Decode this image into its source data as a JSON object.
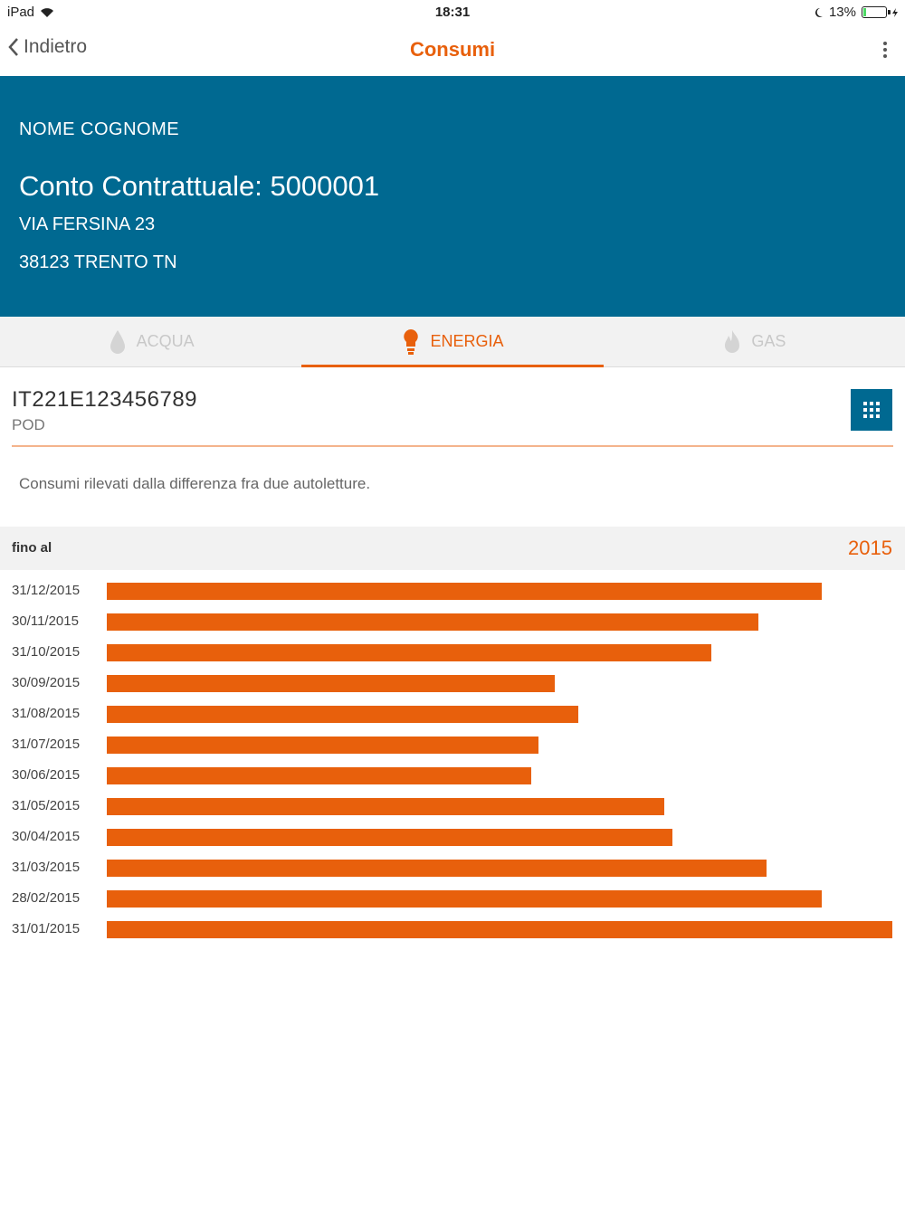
{
  "status_bar": {
    "device": "iPad",
    "time": "18:31",
    "battery": "13%",
    "battery_level": 0.13
  },
  "nav": {
    "back_label": "Indietro",
    "title": "Consumi"
  },
  "banner": {
    "name": "NOME COGNOME",
    "contract": "Conto Contrattuale: 5000001",
    "address_line1": "VIA FERSINA 23",
    "address_line2": "38123 TRENTO TN"
  },
  "tabs": [
    {
      "label": "ACQUA",
      "icon": "water-drop-icon",
      "active": false
    },
    {
      "label": "ENERGIA",
      "icon": "light-bulb-icon",
      "active": true
    },
    {
      "label": "GAS",
      "icon": "flame-icon",
      "active": false
    }
  ],
  "pod": {
    "code": "IT221E123456789",
    "label": "POD"
  },
  "note": "Consumi rilevati dalla differenza fra due autoletture.",
  "section": {
    "label": "fino al",
    "year": "2015"
  },
  "colors": {
    "accent": "#e8600c",
    "banner": "#006991"
  },
  "chart_data": {
    "type": "bar",
    "orientation": "horizontal",
    "categories": [
      "31/12/2015",
      "30/11/2015",
      "31/10/2015",
      "30/09/2015",
      "31/08/2015",
      "31/07/2015",
      "30/06/2015",
      "31/05/2015",
      "30/04/2015",
      "31/03/2015",
      "28/02/2015",
      "31/01/2015"
    ],
    "values": [
      91,
      83,
      77,
      57,
      60,
      55,
      54,
      71,
      72,
      84,
      91,
      100
    ],
    "xlim": [
      0,
      100
    ]
  }
}
